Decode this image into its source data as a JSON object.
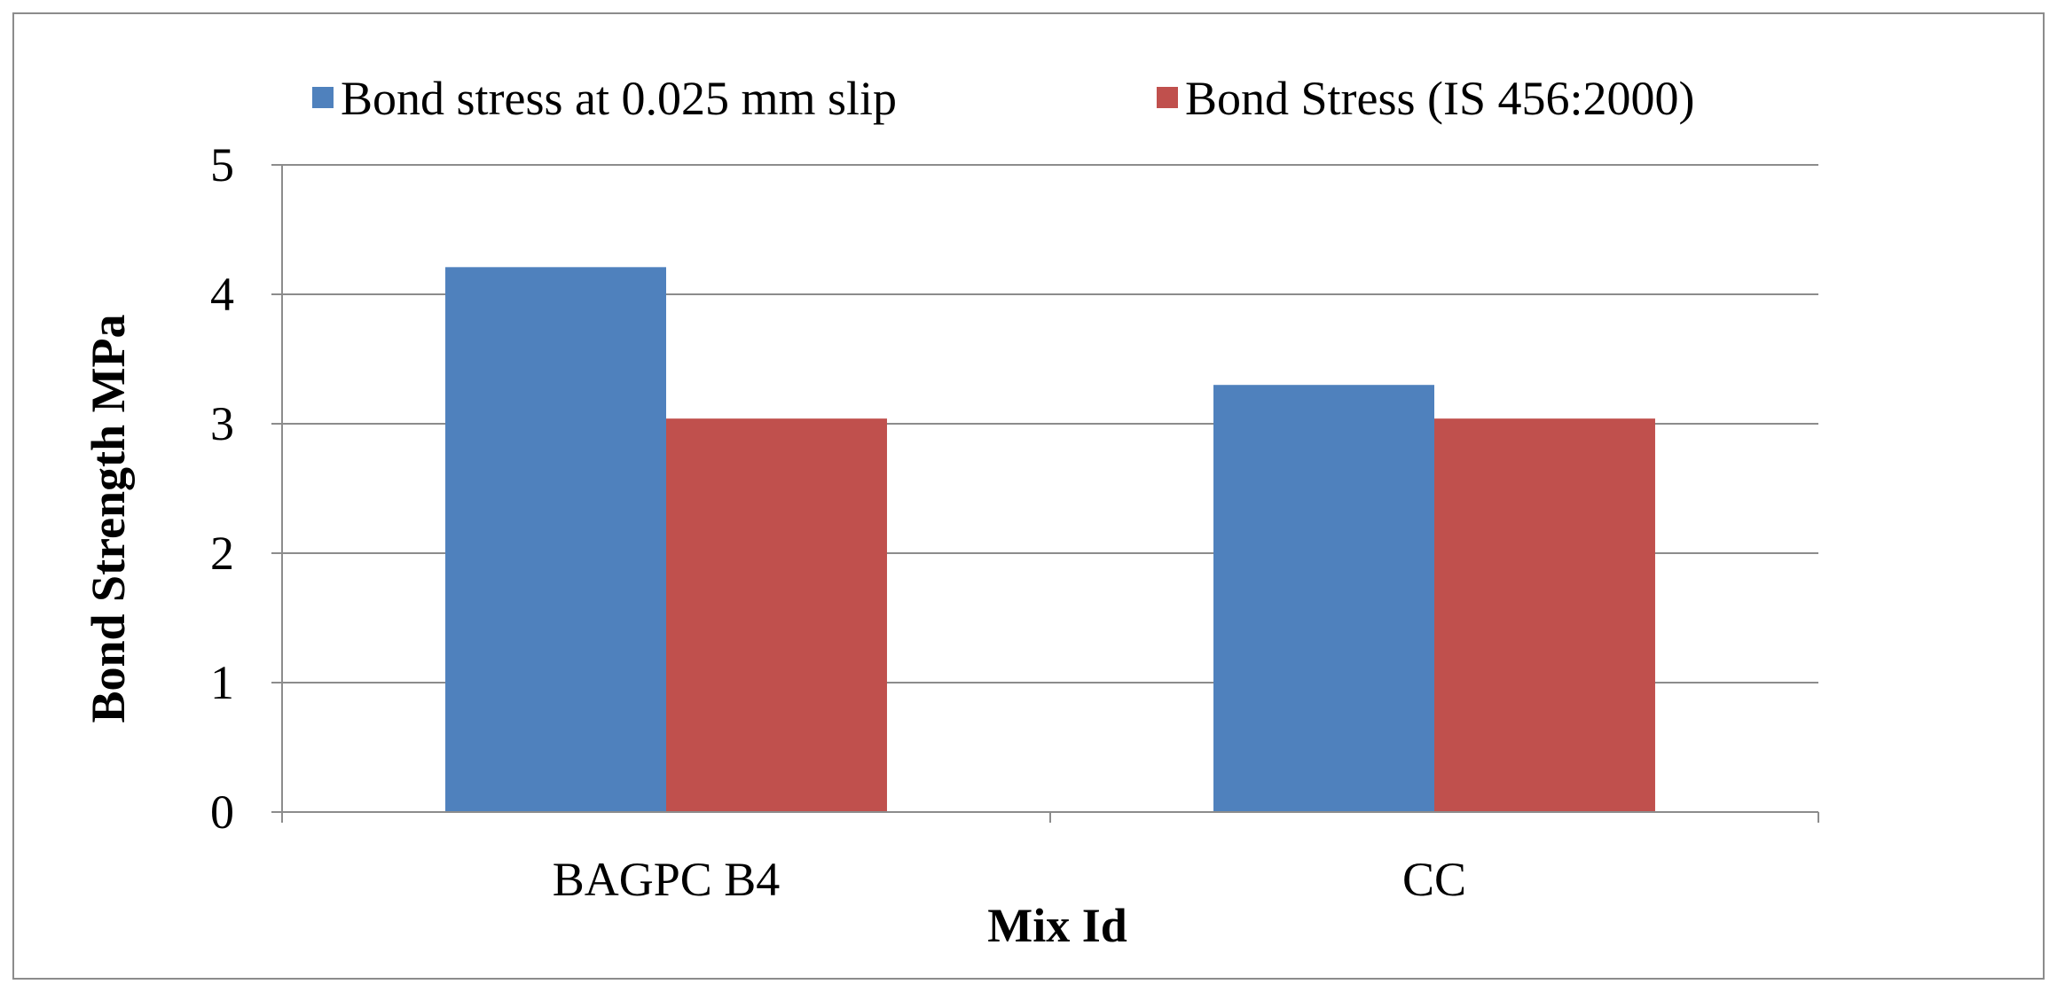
{
  "chart_data": {
    "type": "bar",
    "title": "",
    "xlabel": "Mix Id",
    "ylabel": "Bond Strength MPa",
    "categories": [
      "BAGPC B4",
      "CC"
    ],
    "series": [
      {
        "name": "Bond stress at 0.025 mm slip",
        "color": "#4f81bd",
        "values": [
          4.21,
          3.3
        ]
      },
      {
        "name": "Bond Stress (IS 456:2000)",
        "color": "#c0504d",
        "values": [
          3.04,
          3.04
        ]
      }
    ],
    "ylim": [
      0,
      5
    ],
    "yticks": [
      "0",
      "1",
      "2",
      "3",
      "4",
      "5"
    ],
    "grid": true,
    "legend_position": "top"
  }
}
